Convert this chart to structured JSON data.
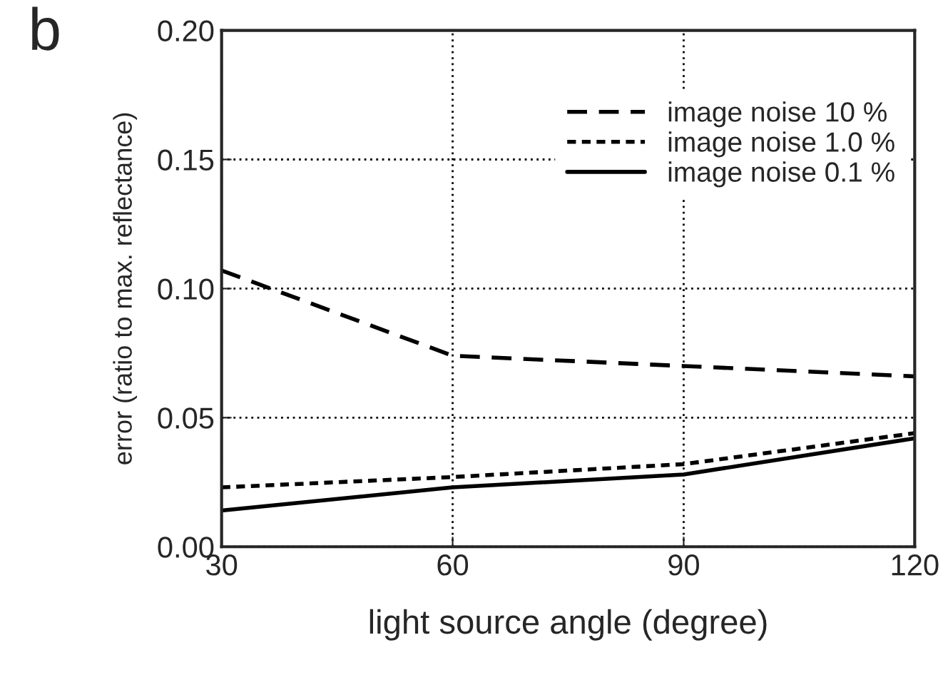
{
  "chart_data": {
    "type": "line",
    "title": "b",
    "xlabel": "light source angle (degree)",
    "ylabel": "error (ratio to max. reflectance)",
    "x": [
      30,
      60,
      90,
      120
    ],
    "series": [
      {
        "name": "image noise 10 %",
        "color": "#000000",
        "line_style": "dashed",
        "values": [
          0.107,
          0.074,
          0.07,
          0.066
        ]
      },
      {
        "name": "image noise 1.0 %",
        "color": "#000000",
        "line_style": "dotted",
        "values": [
          0.023,
          0.027,
          0.032,
          0.044
        ]
      },
      {
        "name": "image noise 0.1 %",
        "color": "#000000",
        "line_style": "solid",
        "values": [
          0.014,
          0.023,
          0.028,
          0.042
        ]
      }
    ],
    "xlim": [
      30,
      120
    ],
    "xticks": [
      30,
      60,
      90,
      120
    ],
    "ylim": [
      0,
      0.2
    ],
    "yticks": [
      {
        "value": 0,
        "label": "0.00"
      },
      {
        "value": 0.05,
        "label": "0.05"
      },
      {
        "value": 0.1,
        "label": "0.10"
      },
      {
        "value": 0.15,
        "label": "0.15"
      },
      {
        "value": 0.2,
        "label": "0.20"
      }
    ],
    "grid": true,
    "legend": "top right"
  }
}
